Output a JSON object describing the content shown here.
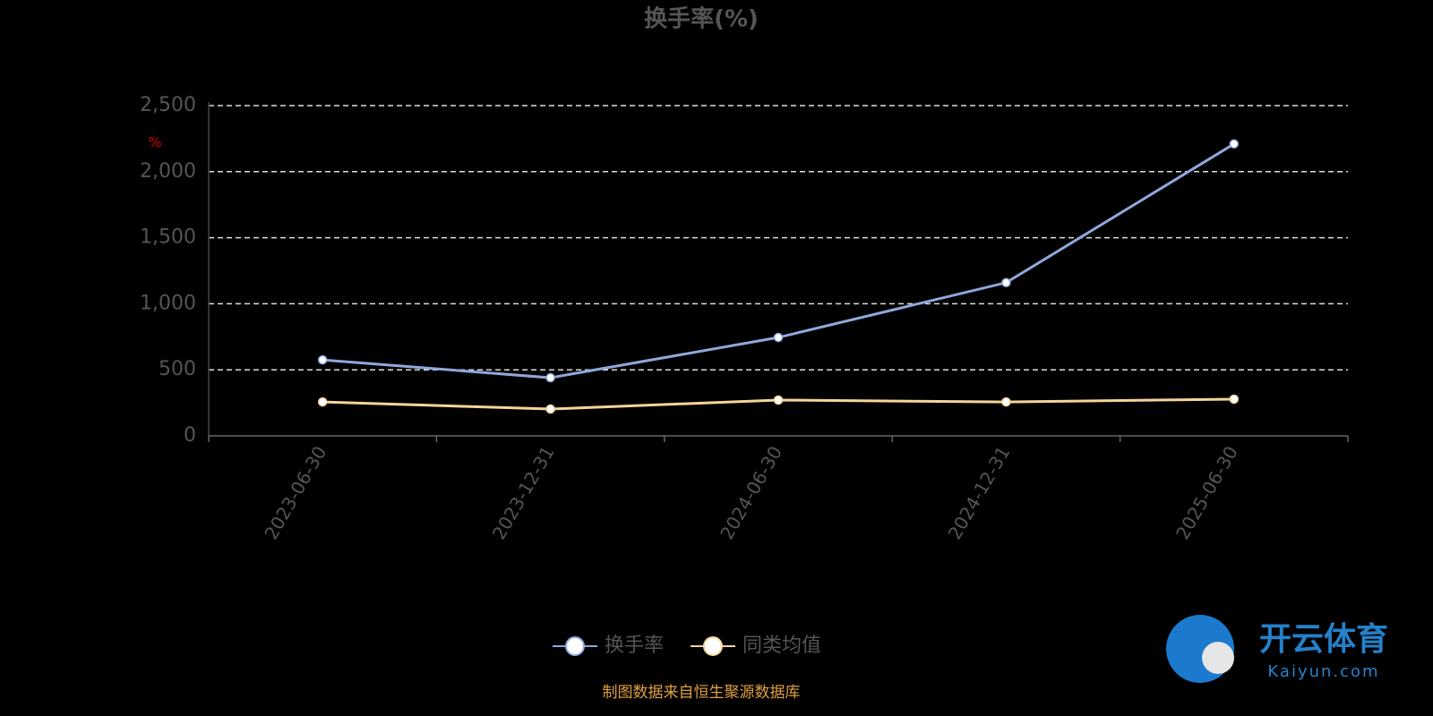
{
  "chart_data": {
    "type": "line",
    "title": "换手率(%)",
    "y_unit": "%",
    "categories": [
      "2023-06-30",
      "2023-12-31",
      "2024-06-30",
      "2024-12-31",
      "2025-06-30"
    ],
    "series": [
      {
        "name": "换手率",
        "color": "#8fa8dc",
        "values": [
          575,
          440,
          745,
          1160,
          2210
        ]
      },
      {
        "name": "同类均值",
        "color": "#f5d49a",
        "values": [
          257,
          203,
          271,
          257,
          278
        ]
      }
    ],
    "ylim": [
      0,
      2500
    ],
    "yticks": [
      0,
      500,
      {
        "value": 1000,
        "label": "1,000"
      },
      {
        "value": 1500,
        "label": "1,500"
      },
      {
        "value": 2000,
        "label": "2,000"
      },
      {
        "value": 2500,
        "label": "2,500"
      }
    ],
    "grid": true,
    "legend": "bottom"
  },
  "footer": "制图数据来自恒生聚源数据库",
  "watermark": {
    "brand": "开云体育",
    "site": "Kaiyun.com"
  }
}
